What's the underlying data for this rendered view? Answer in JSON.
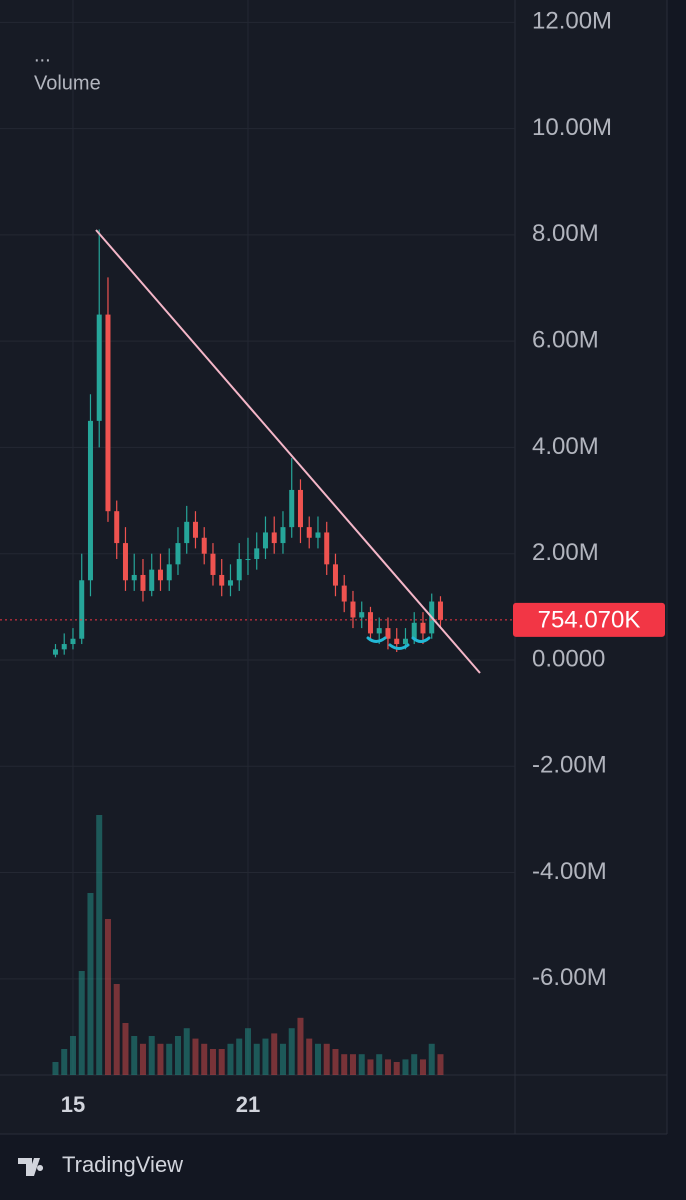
{
  "chart_data": {
    "type": "candlestick",
    "header_dots": "...",
    "volume_label": "Volume",
    "brand": "TradingView",
    "categories": [
      null,
      null,
      "15",
      null,
      null,
      null,
      null,
      null,
      null,
      null,
      null,
      null,
      null,
      null,
      null,
      null,
      null,
      null,
      null,
      null,
      null,
      null,
      "21",
      null,
      null,
      null,
      null,
      null,
      null,
      null,
      null,
      null,
      null,
      null,
      null,
      null,
      null,
      null,
      null,
      null,
      null,
      null,
      null,
      null,
      null
    ],
    "open": [
      100000,
      200000,
      300000,
      400000,
      1500000,
      4500000,
      6500000,
      2800000,
      2200000,
      1500000,
      1600000,
      1300000,
      1700000,
      1500000,
      1800000,
      2200000,
      2600000,
      2300000,
      2000000,
      1600000,
      1400000,
      1500000,
      1900000,
      1900000,
      2100000,
      2400000,
      2200000,
      2500000,
      3200000,
      2500000,
      2300000,
      2400000,
      1800000,
      1400000,
      1100000,
      800000,
      900000,
      500000,
      600000,
      400000,
      300000,
      400000,
      700000,
      500000,
      1100000
    ],
    "high": [
      300000,
      500000,
      600000,
      2000000,
      5000000,
      8100000,
      7200000,
      3000000,
      2500000,
      2000000,
      1900000,
      2000000,
      2000000,
      2100000,
      2500000,
      2900000,
      2800000,
      2500000,
      2200000,
      1900000,
      1800000,
      2200000,
      2300000,
      2400000,
      2700000,
      2700000,
      2800000,
      3800000,
      3400000,
      2700000,
      2700000,
      2600000,
      2000000,
      1600000,
      1300000,
      1100000,
      1000000,
      800000,
      800000,
      600000,
      600000,
      900000,
      900000,
      1250000,
      1200000
    ],
    "low": [
      50000,
      100000,
      200000,
      300000,
      1200000,
      4000000,
      2600000,
      1900000,
      1300000,
      1300000,
      1100000,
      1200000,
      1300000,
      1300000,
      1600000,
      2000000,
      2100000,
      1800000,
      1400000,
      1200000,
      1200000,
      1300000,
      1600000,
      1700000,
      1900000,
      2000000,
      2000000,
      2300000,
      2200000,
      2100000,
      2100000,
      1600000,
      1200000,
      900000,
      600000,
      600000,
      400000,
      300000,
      200000,
      150000,
      200000,
      300000,
      300000,
      400000,
      600000
    ],
    "close": [
      200000,
      300000,
      400000,
      1500000,
      4500000,
      6500000,
      2800000,
      2200000,
      1500000,
      1600000,
      1300000,
      1700000,
      1500000,
      1800000,
      2200000,
      2600000,
      2300000,
      2000000,
      1600000,
      1400000,
      1500000,
      1900000,
      1900000,
      2100000,
      2400000,
      2200000,
      2500000,
      3200000,
      2500000,
      2300000,
      2400000,
      1800000,
      1400000,
      1100000,
      800000,
      900000,
      500000,
      600000,
      400000,
      300000,
      400000,
      700000,
      500000,
      1100000,
      754070
    ],
    "up_color": "#26a69a",
    "down_color": "#ef5350",
    "volume": {
      "values": [
        5,
        10,
        15,
        40,
        70,
        100,
        60,
        35,
        20,
        15,
        12,
        15,
        12,
        12,
        15,
        18,
        14,
        12,
        10,
        10,
        12,
        14,
        18,
        12,
        14,
        16,
        12,
        18,
        22,
        14,
        12,
        12,
        10,
        8,
        8,
        8,
        6,
        8,
        6,
        5,
        6,
        8,
        6,
        12,
        8
      ],
      "ylim": [
        0,
        100
      ]
    },
    "ylim": [
      -7810000,
      12420000
    ],
    "yticks": [
      {
        "value": 12000000,
        "label": "12.00M"
      },
      {
        "value": 10000000,
        "label": "10.00M"
      },
      {
        "value": 8000000,
        "label": "8.00M"
      },
      {
        "value": 6000000,
        "label": "6.00M"
      },
      {
        "value": 4000000,
        "label": "4.00M"
      },
      {
        "value": 2000000,
        "label": "2.00M"
      },
      {
        "value": 0,
        "label": "0.0000"
      },
      {
        "value": -2000000,
        "label": "-2.00M"
      },
      {
        "value": -4000000,
        "label": "-4.00M"
      },
      {
        "value": -6000000,
        "label": "-6.00M"
      }
    ],
    "grid": true,
    "last_price": {
      "value": 754070,
      "label": "754.070K",
      "color": "#f23645"
    }
  }
}
